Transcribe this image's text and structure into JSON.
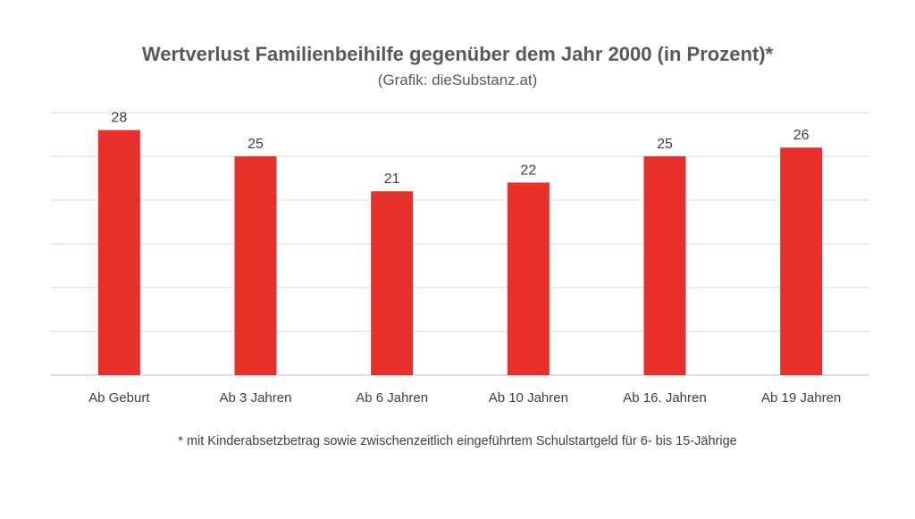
{
  "chart_data": {
    "type": "bar",
    "title": "Wertverlust Familienbeihilfe gegenüber dem Jahr 2000 (in Prozent)*",
    "subtitle": "(Grafik: dieSubstanz.at)",
    "categories": [
      "Ab Geburt",
      "Ab 3 Jahren",
      "Ab 6 Jahren",
      "Ab 10 Jahren",
      "Ab 16. Jahren",
      "Ab 19 Jahren"
    ],
    "values": [
      28,
      25,
      21,
      22,
      25,
      26
    ],
    "ylim": [
      0,
      30
    ],
    "grid": true,
    "bar_color": "#e8302a",
    "footnote": "* mit Kinderabsetzbetrag sowie zwischenzeitlich eingeführtem Schulstartgeld für 6- bis 15-Jährige"
  }
}
